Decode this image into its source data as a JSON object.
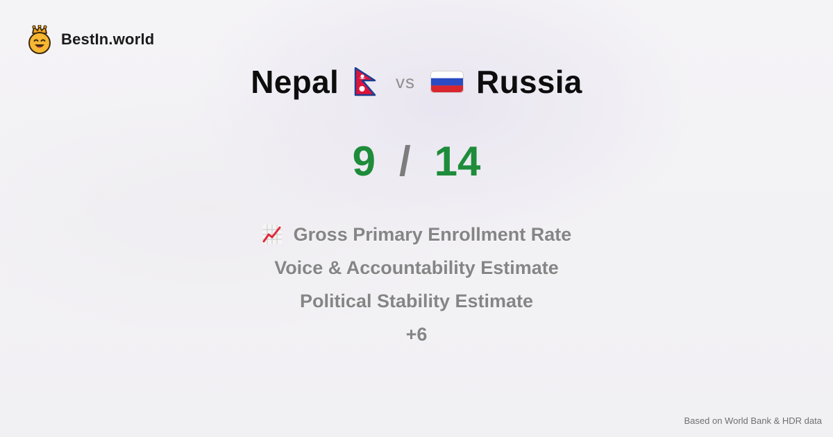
{
  "brand": {
    "name": "BestIn.world",
    "logo_icon": "crowned-smiley-icon"
  },
  "comparison": {
    "left_country": "Nepal",
    "left_flag_icon": "nepal-flag-icon",
    "separator": "vs",
    "right_country": "Russia",
    "right_flag_icon": "russia-flag-icon"
  },
  "score": {
    "left": "9",
    "separator": "/",
    "right": "14"
  },
  "metrics": {
    "icon": "chart-increasing-icon",
    "items": [
      "Gross Primary Enrollment Rate",
      "Voice & Accountability Estimate",
      "Political Stability Estimate"
    ],
    "more": "+6"
  },
  "footer": {
    "source": "Based on World Bank & HDR data"
  },
  "colors": {
    "score": "#1e8c3a",
    "metric_text": "#858585",
    "title_text": "#0d0d0d"
  }
}
